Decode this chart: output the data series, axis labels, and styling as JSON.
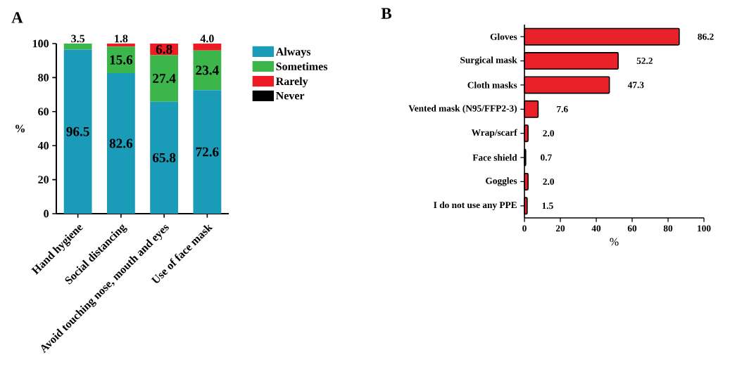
{
  "chart_data": [
    {
      "type": "bar",
      "title": "A",
      "ylabel": "%",
      "stacked": true,
      "categories": [
        "Hand hygiene",
        "Social distancing",
        "Avoid touching nose, mouth and eyes",
        "Use of face mask"
      ],
      "series": [
        {
          "name": "Always",
          "color": "#1a9bb8",
          "values": [
            96.5,
            82.6,
            65.8,
            72.6
          ],
          "value_labels": [
            "96.5",
            "82.6",
            "65.8",
            "72.6"
          ]
        },
        {
          "name": "Sometimes",
          "color": "#3cb54a",
          "values": [
            3.5,
            15.6,
            27.4,
            23.4
          ],
          "value_labels": [
            "3.5",
            "15.6",
            "27.4",
            "23.4"
          ]
        },
        {
          "name": "Rarely",
          "color": "#ed1c24",
          "values": [
            0,
            1.8,
            6.8,
            4.0
          ],
          "value_labels": [
            null,
            "1.8",
            "6.8",
            "4.0"
          ]
        },
        {
          "name": "Never",
          "color": "#000000",
          "values": [
            0,
            0,
            0,
            0
          ]
        }
      ],
      "ylim": [
        0,
        100
      ],
      "yticks": [
        0,
        20,
        40,
        60,
        80,
        100
      ],
      "legend": "right"
    },
    {
      "type": "bar",
      "title": "B",
      "xlabel": "%",
      "orientation": "horizontal",
      "categories": [
        "Gloves",
        "Surgical mask",
        "Cloth masks",
        "Vented mask (N95/FFP2-3)",
        "Wrap/scarf",
        "Face shield",
        "Goggles",
        "I do not use any PPE"
      ],
      "values": [
        86.2,
        52.2,
        47.3,
        7.6,
        2.0,
        0.7,
        2.0,
        1.5
      ],
      "value_labels": [
        "86.2",
        "52.2",
        "47.3",
        "7.6",
        "2.0",
        "0.7",
        "2.0",
        "1.5"
      ],
      "color": "#e8212a",
      "xlim": [
        0,
        100
      ],
      "xticks": [
        0,
        20,
        40,
        60,
        80,
        100
      ]
    }
  ]
}
